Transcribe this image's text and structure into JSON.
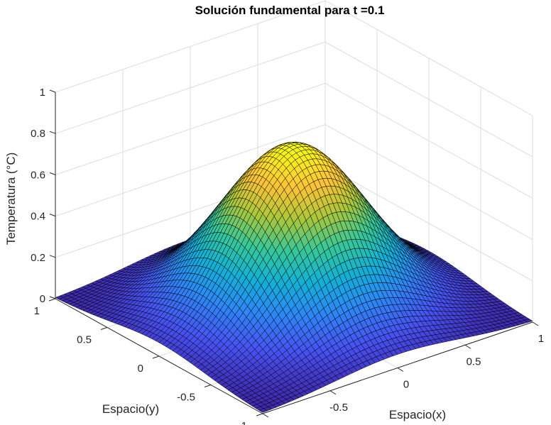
{
  "chart_data": {
    "type": "surface3d",
    "title": "Solución fundamental para t =0.1",
    "xlabel": "Espacio(x)",
    "ylabel": "Espacio(y)",
    "zlabel": "Temperatura (°C)",
    "xlim": [
      -1,
      1
    ],
    "ylim": [
      -1,
      1
    ],
    "zlim": [
      0,
      1
    ],
    "xticks": [
      "-1",
      "-0.5",
      "0",
      "0.5",
      "1"
    ],
    "yticks": [
      "-1",
      "-0.5",
      "0",
      "0.5",
      "1"
    ],
    "zticks": [
      "0",
      "0.2",
      "0.4",
      "0.6",
      "0.8",
      "1"
    ],
    "function": "u(x,y) = exp(-(x^2+y^2)/(4*0.1)) approx, peak ~0.8 at origin",
    "peak_value": 0.8,
    "colormap": "parula",
    "grid": true,
    "mesh_edges": "black"
  }
}
